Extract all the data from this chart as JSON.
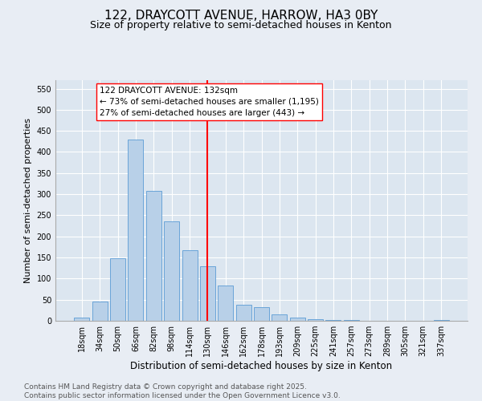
{
  "title": "122, DRAYCOTT AVENUE, HARROW, HA3 0BY",
  "subtitle": "Size of property relative to semi-detached houses in Kenton",
  "xlabel": "Distribution of semi-detached houses by size in Kenton",
  "ylabel": "Number of semi-detached properties",
  "bar_color": "#b8d0e8",
  "bar_edge_color": "#5b9bd5",
  "background_color": "#dce6f0",
  "grid_color": "#ffffff",
  "fig_background": "#e8edf4",
  "categories": [
    "18sqm",
    "34sqm",
    "50sqm",
    "66sqm",
    "82sqm",
    "98sqm",
    "114sqm",
    "130sqm",
    "146sqm",
    "162sqm",
    "178sqm",
    "193sqm",
    "209sqm",
    "225sqm",
    "241sqm",
    "257sqm",
    "273sqm",
    "289sqm",
    "305sqm",
    "321sqm",
    "337sqm"
  ],
  "values": [
    8,
    45,
    148,
    430,
    308,
    235,
    168,
    130,
    84,
    38,
    32,
    15,
    8,
    4,
    2,
    1,
    0,
    0,
    0,
    0,
    2
  ],
  "ylim": [
    0,
    570
  ],
  "yticks": [
    0,
    50,
    100,
    150,
    200,
    250,
    300,
    350,
    400,
    450,
    500,
    550
  ],
  "marker_idx": 7,
  "marker_label": "122 DRAYCOTT AVENUE: 132sqm",
  "annotation_line1": "← 73% of semi-detached houses are smaller (1,195)",
  "annotation_line2": "27% of semi-detached houses are larger (443) →",
  "footer_line1": "Contains HM Land Registry data © Crown copyright and database right 2025.",
  "footer_line2": "Contains public sector information licensed under the Open Government Licence v3.0.",
  "title_fontsize": 11,
  "subtitle_fontsize": 9,
  "axis_label_fontsize": 8,
  "tick_fontsize": 7,
  "annotation_fontsize": 7.5,
  "footer_fontsize": 6.5
}
